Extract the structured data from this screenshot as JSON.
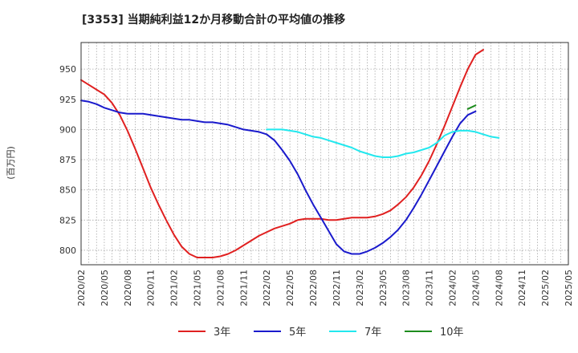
{
  "chart_data": {
    "type": "line",
    "title": "[3353]  当期純利益12か月移動合計の平均値の推移",
    "ylabel": "(百万円)",
    "xlabel": "",
    "ylim": [
      788,
      972
    ],
    "y_ticks": [
      800,
      825,
      850,
      875,
      900,
      925,
      950
    ],
    "x_ticks": [
      "2020/02",
      "2020/05",
      "2020/08",
      "2020/11",
      "2021/02",
      "2021/05",
      "2021/08",
      "2021/11",
      "2022/02",
      "2022/05",
      "2022/08",
      "2022/11",
      "2023/02",
      "2023/05",
      "2023/08",
      "2023/11",
      "2024/02",
      "2024/05",
      "2024/08",
      "2024/11",
      "2025/02",
      "2025/05"
    ],
    "grid": true,
    "legend_position": "bottom",
    "series": [
      {
        "name": "3年",
        "color": "#e02020",
        "points": [
          [
            "2020/02",
            941
          ],
          [
            "2020/05",
            929
          ],
          [
            "2020/06",
            922
          ],
          [
            "2020/07",
            912
          ],
          [
            "2020/08",
            899
          ],
          [
            "2020/09",
            884
          ],
          [
            "2020/10",
            868
          ],
          [
            "2020/11",
            852
          ],
          [
            "2020/12",
            838
          ],
          [
            "2021/01",
            825
          ],
          [
            "2021/02",
            813
          ],
          [
            "2021/03",
            803
          ],
          [
            "2021/04",
            797
          ],
          [
            "2021/05",
            794
          ],
          [
            "2021/06",
            794
          ],
          [
            "2021/07",
            794
          ],
          [
            "2021/08",
            795
          ],
          [
            "2021/09",
            797
          ],
          [
            "2021/10",
            800
          ],
          [
            "2021/11",
            804
          ],
          [
            "2021/12",
            808
          ],
          [
            "2022/01",
            812
          ],
          [
            "2022/02",
            815
          ],
          [
            "2022/03",
            818
          ],
          [
            "2022/04",
            820
          ],
          [
            "2022/05",
            822
          ],
          [
            "2022/06",
            825
          ],
          [
            "2022/07",
            826
          ],
          [
            "2022/08",
            826
          ],
          [
            "2022/09",
            826
          ],
          [
            "2022/10",
            825
          ],
          [
            "2022/11",
            825
          ],
          [
            "2022/12",
            826
          ],
          [
            "2023/01",
            827
          ],
          [
            "2023/02",
            827
          ],
          [
            "2023/03",
            827
          ],
          [
            "2023/04",
            828
          ],
          [
            "2023/05",
            830
          ],
          [
            "2023/06",
            833
          ],
          [
            "2023/07",
            838
          ],
          [
            "2023/08",
            844
          ],
          [
            "2023/09",
            852
          ],
          [
            "2023/10",
            862
          ],
          [
            "2023/11",
            874
          ],
          [
            "2023/12",
            888
          ],
          [
            "2024/01",
            903
          ],
          [
            "2024/02",
            919
          ],
          [
            "2024/03",
            935
          ],
          [
            "2024/04",
            950
          ],
          [
            "2024/05",
            962
          ],
          [
            "2024/06",
            966
          ]
        ]
      },
      {
        "name": "5年",
        "color": "#1a1acc",
        "points": [
          [
            "2020/02",
            924
          ],
          [
            "2020/03",
            923
          ],
          [
            "2020/04",
            921
          ],
          [
            "2020/05",
            918
          ],
          [
            "2020/06",
            916
          ],
          [
            "2020/07",
            914
          ],
          [
            "2020/08",
            913
          ],
          [
            "2020/09",
            913
          ],
          [
            "2020/10",
            913
          ],
          [
            "2020/11",
            912
          ],
          [
            "2020/12",
            911
          ],
          [
            "2021/01",
            910
          ],
          [
            "2021/02",
            909
          ],
          [
            "2021/03",
            908
          ],
          [
            "2021/04",
            908
          ],
          [
            "2021/05",
            907
          ],
          [
            "2021/06",
            906
          ],
          [
            "2021/07",
            906
          ],
          [
            "2021/08",
            905
          ],
          [
            "2021/09",
            904
          ],
          [
            "2021/10",
            902
          ],
          [
            "2021/11",
            900
          ],
          [
            "2021/12",
            899
          ],
          [
            "2022/01",
            898
          ],
          [
            "2022/02",
            896
          ],
          [
            "2022/03",
            891
          ],
          [
            "2022/04",
            883
          ],
          [
            "2022/05",
            874
          ],
          [
            "2022/06",
            863
          ],
          [
            "2022/07",
            850
          ],
          [
            "2022/08",
            838
          ],
          [
            "2022/09",
            827
          ],
          [
            "2022/10",
            816
          ],
          [
            "2022/11",
            805
          ],
          [
            "2022/12",
            799
          ],
          [
            "2023/01",
            797
          ],
          [
            "2023/02",
            797
          ],
          [
            "2023/03",
            799
          ],
          [
            "2023/04",
            802
          ],
          [
            "2023/05",
            806
          ],
          [
            "2023/06",
            811
          ],
          [
            "2023/07",
            817
          ],
          [
            "2023/08",
            825
          ],
          [
            "2023/09",
            835
          ],
          [
            "2023/10",
            846
          ],
          [
            "2023/11",
            858
          ],
          [
            "2023/12",
            870
          ],
          [
            "2024/01",
            882
          ],
          [
            "2024/02",
            894
          ],
          [
            "2024/03",
            905
          ],
          [
            "2024/04",
            912
          ],
          [
            "2024/05",
            915
          ]
        ]
      },
      {
        "name": "7年",
        "color": "#22e8ee",
        "points": [
          [
            "2022/02",
            900
          ],
          [
            "2022/03",
            900
          ],
          [
            "2022/04",
            900
          ],
          [
            "2022/05",
            899
          ],
          [
            "2022/06",
            898
          ],
          [
            "2022/07",
            896
          ],
          [
            "2022/08",
            894
          ],
          [
            "2022/09",
            893
          ],
          [
            "2022/10",
            891
          ],
          [
            "2022/11",
            889
          ],
          [
            "2022/12",
            887
          ],
          [
            "2023/01",
            885
          ],
          [
            "2023/02",
            882
          ],
          [
            "2023/03",
            880
          ],
          [
            "2023/04",
            878
          ],
          [
            "2023/05",
            877
          ],
          [
            "2023/06",
            877
          ],
          [
            "2023/07",
            878
          ],
          [
            "2023/08",
            880
          ],
          [
            "2023/09",
            881
          ],
          [
            "2023/10",
            883
          ],
          [
            "2023/11",
            885
          ],
          [
            "2023/12",
            889
          ],
          [
            "2024/01",
            895
          ],
          [
            "2024/02",
            898
          ],
          [
            "2024/03",
            899
          ],
          [
            "2024/04",
            899
          ],
          [
            "2024/05",
            898
          ],
          [
            "2024/06",
            896
          ],
          [
            "2024/07",
            894
          ],
          [
            "2024/08",
            893
          ]
        ]
      },
      {
        "name": "10年",
        "color": "#1e8c1e",
        "points": [
          [
            "2024/04",
            917
          ],
          [
            "2024/05",
            920
          ]
        ]
      }
    ]
  }
}
